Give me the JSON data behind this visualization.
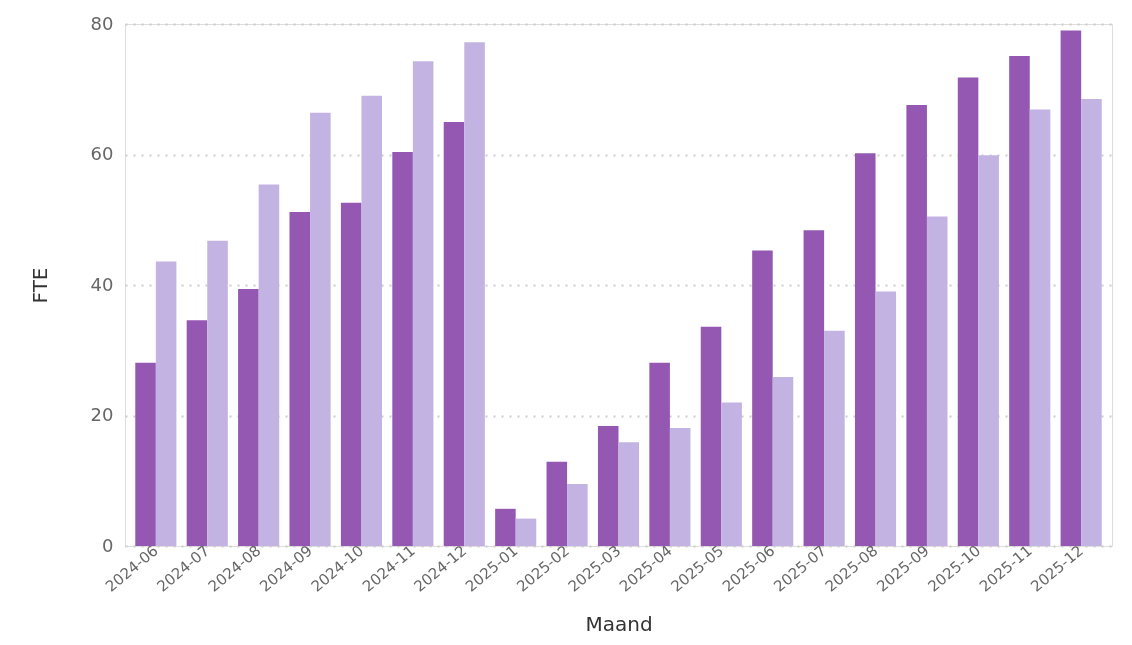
{
  "chart_data": {
    "type": "bar",
    "xlabel": "Maand",
    "ylabel": "FTE",
    "categories": [
      "2024-06",
      "2024-07",
      "2024-08",
      "2024-09",
      "2024-10",
      "2024-11",
      "2024-12",
      "2025-01",
      "2025-02",
      "2025-03",
      "2025-04",
      "2025-05",
      "2025-06",
      "2025-07",
      "2025-08",
      "2025-09",
      "2025-10",
      "2025-11",
      "2025-12"
    ],
    "series": [
      {
        "color": "#9558b2",
        "values": [
          28.1,
          34.6,
          39.4,
          51.2,
          52.6,
          60.4,
          65.0,
          5.7,
          12.9,
          18.4,
          28.1,
          33.6,
          45.3,
          48.4,
          60.2,
          67.6,
          71.8,
          75.1,
          79.0
        ]
      },
      {
        "color": "#c3b3e3",
        "values": [
          43.6,
          46.8,
          55.4,
          66.4,
          69.0,
          74.3,
          77.2,
          4.2,
          9.5,
          15.9,
          18.1,
          22.0,
          25.9,
          33.0,
          39.0,
          50.5,
          59.9,
          66.9,
          68.5
        ]
      }
    ],
    "ylim": [
      0,
      80
    ],
    "yticks": [
      0,
      20,
      40,
      60,
      80
    ],
    "grid": "y",
    "legend": false
  }
}
